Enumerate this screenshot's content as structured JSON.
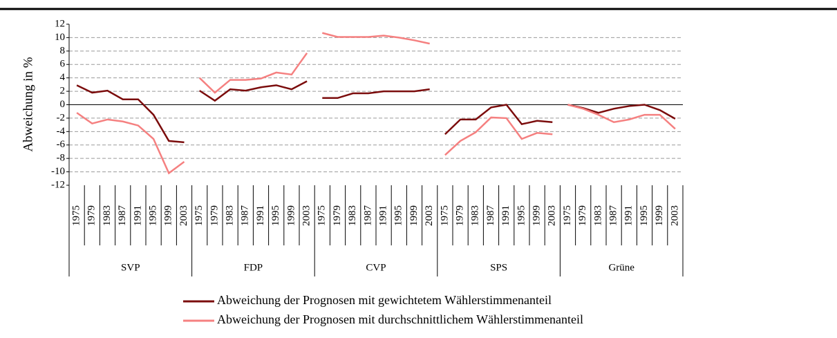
{
  "chart_data": {
    "type": "line",
    "y_label": "Abweichung in %",
    "categories": [
      1975,
      1979,
      1983,
      1987,
      1991,
      1995,
      1999,
      2003,
      1975,
      1979,
      1983,
      1987,
      1991,
      1995,
      1999,
      2003,
      1975,
      1979,
      1983,
      1987,
      1991,
      1995,
      1999,
      2003,
      1975,
      1979,
      1983,
      1987,
      1991,
      1995,
      1999,
      2003,
      1975,
      1979,
      1983,
      1987,
      1991,
      1995,
      1999,
      2003
    ],
    "groups": [
      "SVP",
      "FDP",
      "CVP",
      "SPS",
      "Grüne"
    ],
    "series": [
      {
        "name": "Abweichung der Prognosen mit gewichtetem Wählerstimmenanteil",
        "color": "#7b0c0c",
        "values": [
          2.9,
          1.8,
          2.1,
          0.8,
          0.8,
          -1.5,
          -5.4,
          -5.6,
          2.1,
          0.6,
          2.3,
          2.1,
          2.6,
          2.9,
          2.3,
          3.5,
          1.0,
          1.0,
          1.7,
          1.7,
          2.0,
          2.0,
          2.0,
          2.3,
          -4.4,
          -2.2,
          -2.2,
          -0.4,
          0.0,
          -2.9,
          -2.4,
          -2.6,
          0.0,
          -0.5,
          -1.2,
          -0.6,
          -0.2,
          0.0,
          -0.8,
          -2.1
        ]
      },
      {
        "name": "Abweichung der Prognosen mit durchschnittlichem Wählerstimmenanteil",
        "color": "#f58080",
        "values": [
          -1.2,
          -2.8,
          -2.2,
          -2.5,
          -3.1,
          -5.1,
          -10.2,
          -8.5,
          4.0,
          1.8,
          3.7,
          3.7,
          3.9,
          4.8,
          4.5,
          7.7,
          10.7,
          10.1,
          10.1,
          10.1,
          10.3,
          10.0,
          9.6,
          9.1,
          -7.5,
          -5.4,
          -4.1,
          -1.9,
          -2.0,
          -5.1,
          -4.2,
          -4.4,
          0.0,
          -0.6,
          -1.5,
          -2.6,
          -2.2,
          -1.5,
          -1.5,
          -3.6
        ]
      }
    ],
    "ylim": [
      -12,
      12
    ],
    "yticks": [
      -12,
      -10,
      -8,
      -6,
      -4,
      -2,
      0,
      2,
      4,
      6,
      8,
      10,
      12
    ],
    "grid": true
  }
}
